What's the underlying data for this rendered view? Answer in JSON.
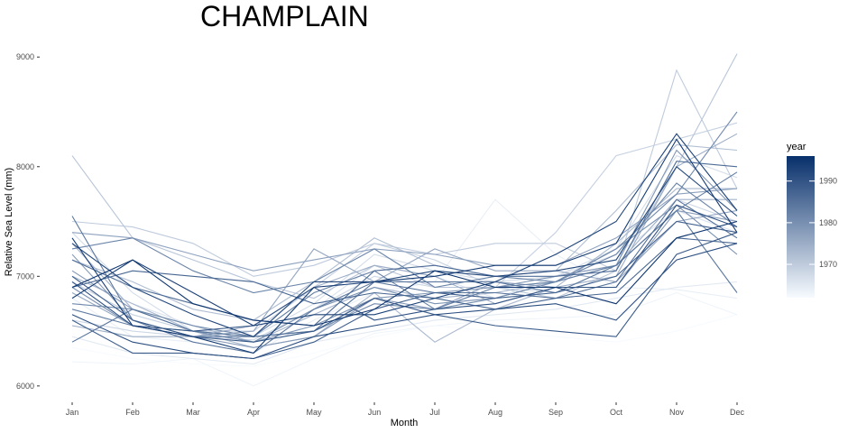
{
  "chart_data": {
    "type": "line",
    "title": "CHAMPLAIN",
    "xlabel": "Month",
    "ylabel": "Relative Sea Level (mm)",
    "categories": [
      "Jan",
      "Feb",
      "Mar",
      "Apr",
      "May",
      "Jun",
      "Jul",
      "Aug",
      "Sep",
      "Oct",
      "Nov",
      "Dec"
    ],
    "ylim": [
      5900,
      9150
    ],
    "yticks": [
      6000,
      7000,
      8000,
      9000
    ],
    "ytick_labels": [
      "6000",
      "7000",
      "8000",
      "9000"
    ],
    "grid": false,
    "legend": {
      "title": "year",
      "position": "right",
      "type": "colorbar",
      "range": [
        1962,
        1996
      ],
      "ticks": [
        1970,
        1980,
        1990
      ],
      "tick_labels": [
        "1970",
        "1980",
        "1990"
      ],
      "color_low": "#f7fbff",
      "color_high": "#08306b"
    },
    "series": [
      {
        "year": 1962,
        "values": [
          6350,
          6250,
          6200,
          6180,
          6300,
          6450,
          6550,
          6500,
          6450,
          6400,
          6500,
          6650
        ]
      },
      {
        "year": 1963,
        "values": [
          6220,
          6200,
          6250,
          6000,
          6250,
          6480,
          6550,
          6600,
          6620,
          6650,
          6850,
          6650
        ]
      },
      {
        "year": 1964,
        "values": [
          6800,
          6450,
          6400,
          6300,
          6600,
          6850,
          6950,
          7700,
          7200,
          6900,
          6880,
          6800
        ]
      },
      {
        "year": 1965,
        "values": [
          6450,
          6300,
          6250,
          6200,
          6400,
          6500,
          6600,
          6650,
          6700,
          6800,
          6900,
          6950
        ]
      },
      {
        "year": 1966,
        "values": [
          7000,
          6750,
          6550,
          6400,
          6700,
          7100,
          7000,
          6800,
          7000,
          7200,
          7600,
          7400
        ]
      },
      {
        "year": 1967,
        "values": [
          7400,
          6850,
          6500,
          6450,
          6750,
          7200,
          7050,
          6950,
          7000,
          7250,
          8100,
          7900
        ]
      },
      {
        "year": 1968,
        "values": [
          6600,
          6500,
          6450,
          6420,
          6700,
          7000,
          6900,
          6900,
          6850,
          7100,
          7700,
          7500
        ]
      },
      {
        "year": 1969,
        "values": [
          6950,
          6650,
          6500,
          6500,
          6900,
          7300,
          7150,
          6900,
          7400,
          8100,
          8250,
          8400
        ]
      },
      {
        "year": 1970,
        "values": [
          7500,
          7450,
          7300,
          7000,
          7100,
          7300,
          7200,
          7300,
          7300,
          7050,
          8880,
          7800
        ]
      },
      {
        "year": 1971,
        "values": [
          8100,
          7350,
          7150,
          6950,
          6800,
          7100,
          6900,
          6900,
          6800,
          7050,
          8000,
          9030
        ]
      },
      {
        "year": 1972,
        "values": [
          7150,
          6950,
          6700,
          6600,
          6950,
          7350,
          7100,
          7000,
          7050,
          7600,
          8200,
          8150
        ]
      },
      {
        "year": 1973,
        "values": [
          7000,
          6750,
          6500,
          6350,
          6450,
          6850,
          6400,
          6700,
          6900,
          7300,
          7800,
          7800
        ]
      },
      {
        "year": 1974,
        "values": [
          7300,
          6700,
          6550,
          6400,
          6650,
          6900,
          6800,
          6850,
          6950,
          7100,
          7700,
          7700
        ]
      },
      {
        "year": 1975,
        "values": [
          6550,
          6450,
          6450,
          6550,
          6900,
          7100,
          7000,
          6750,
          6900,
          7000,
          8000,
          8300
        ]
      },
      {
        "year": 1976,
        "values": [
          6850,
          6550,
          6450,
          6500,
          7250,
          6950,
          7250,
          7050,
          7050,
          6950,
          7500,
          7600
        ]
      },
      {
        "year": 1977,
        "values": [
          7400,
          7350,
          7200,
          7050,
          7150,
          7250,
          7200,
          7100,
          7100,
          7350,
          7750,
          7800
        ]
      },
      {
        "year": 1978,
        "values": [
          7200,
          6600,
          6450,
          6350,
          6450,
          6800,
          6700,
          6950,
          6900,
          6900,
          7600,
          7500
        ]
      },
      {
        "year": 1979,
        "values": [
          7050,
          6700,
          6500,
          6400,
          6550,
          6800,
          6850,
          6900,
          7000,
          7100,
          8150,
          7600
        ]
      },
      {
        "year": 1980,
        "values": [
          6900,
          6550,
          6500,
          6400,
          6700,
          6900,
          6750,
          6800,
          6950,
          7250,
          7650,
          7200
        ]
      },
      {
        "year": 1981,
        "values": [
          6750,
          6700,
          6550,
          6450,
          6500,
          6750,
          6700,
          6800,
          6950,
          7250,
          7750,
          8500
        ]
      },
      {
        "year": 1982,
        "values": [
          7250,
          7350,
          7050,
          6850,
          6950,
          7250,
          6900,
          7000,
          6950,
          7200,
          7850,
          7450
        ]
      },
      {
        "year": 1983,
        "values": [
          6700,
          6550,
          6450,
          6450,
          6850,
          7050,
          6700,
          6900,
          6950,
          7100,
          7600,
          7950
        ]
      },
      {
        "year": 1984,
        "values": [
          7550,
          6600,
          6400,
          6300,
          6700,
          6950,
          6950,
          6950,
          6850,
          7100,
          7600,
          6850
        ]
      },
      {
        "year": 1985,
        "values": [
          6400,
          6700,
          6500,
          6450,
          6500,
          6950,
          6850,
          6850,
          6800,
          6950,
          7700,
          7350
        ]
      },
      {
        "year": 1986,
        "values": [
          7150,
          6900,
          6750,
          6600,
          6550,
          7050,
          7100,
          7000,
          7000,
          7050,
          8050,
          8000
        ]
      },
      {
        "year": 1987,
        "values": [
          6900,
          7050,
          7000,
          6950,
          6750,
          6850,
          6800,
          6700,
          6800,
          6850,
          7350,
          7300
        ]
      },
      {
        "year": 1988,
        "values": [
          6600,
          6300,
          6300,
          6250,
          6400,
          6700,
          6850,
          6800,
          6850,
          7000,
          7500,
          7400
        ]
      },
      {
        "year": 1989,
        "values": [
          7000,
          6600,
          6450,
          6400,
          6500,
          6800,
          6650,
          6550,
          6500,
          6450,
          7200,
          7400
        ]
      },
      {
        "year": 1990,
        "values": [
          6950,
          6550,
          6500,
          6550,
          6900,
          6600,
          6700,
          6750,
          6900,
          6900,
          7650,
          7450
        ]
      },
      {
        "year": 1991,
        "values": [
          6650,
          6400,
          6300,
          6250,
          6450,
          6550,
          6650,
          6700,
          6750,
          6600,
          7150,
          7300
        ]
      },
      {
        "year": 1992,
        "values": [
          7300,
          6900,
          6650,
          6450,
          6950,
          6950,
          7050,
          7000,
          7050,
          7150,
          8000,
          7550
        ]
      },
      {
        "year": 1993,
        "values": [
          6800,
          7150,
          6850,
          6550,
          6650,
          6650,
          6800,
          6950,
          7200,
          7500,
          8300,
          7600
        ]
      },
      {
        "year": 1994,
        "values": [
          7350,
          6550,
          6450,
          6300,
          6900,
          6950,
          7000,
          7100,
          7100,
          7300,
          8250,
          7400
        ]
      },
      {
        "year": 1995,
        "values": [
          6900,
          7150,
          6750,
          6600,
          6550,
          6700,
          7050,
          6900,
          6900,
          6750,
          7350,
          7500
        ]
      }
    ]
  }
}
